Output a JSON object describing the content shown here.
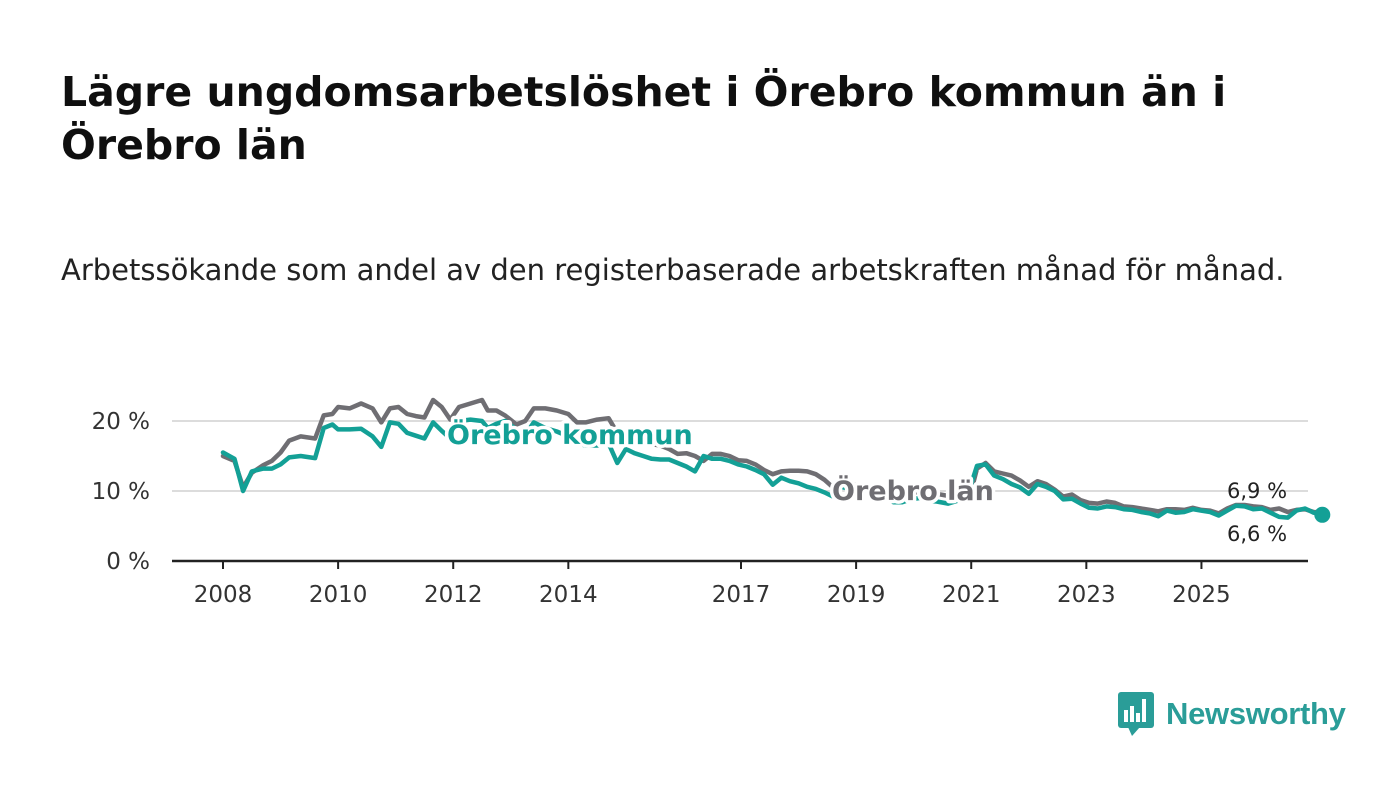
{
  "title": "Lägre ungdomsarbetslöshet i Örebro kommun än i Örebro län",
  "subtitle": "Arbetssökande som andel av den registerbaserade arbetskraften månad för månad.",
  "brand": {
    "name": "Newsworthy",
    "logo_icon": "bar-chart-speech-bubble-icon"
  },
  "colors": {
    "kommun": "#13a096",
    "lan": "#6f6e73",
    "grid": "#dcdcdc",
    "axis": "#222222",
    "brand": "#2a9d98"
  },
  "chart_data": {
    "type": "line",
    "title": "Lägre ungdomsarbetslöshet i Örebro kommun än i Örebro län",
    "xlabel": "",
    "ylabel": "",
    "xlim": [
      2008.0,
      2026.0
    ],
    "ylim": [
      0,
      20
    ],
    "y_ticks": [
      0,
      10,
      20
    ],
    "y_tick_labels": [
      "0 %",
      "10 %",
      "20 %"
    ],
    "x_ticks": [
      2008,
      2010,
      2012,
      2014,
      2017,
      2019,
      2021,
      2023,
      2025
    ],
    "x_tick_labels": [
      "2008",
      "2010",
      "2012",
      "2014",
      "2017",
      "2019",
      "2021",
      "2023",
      "2025"
    ],
    "grid": true,
    "series": [
      {
        "name": "Örebro län",
        "label": "Örebro län",
        "end_label": "6,9 %",
        "points": [
          [
            2008.0,
            15.0
          ],
          [
            2008.2,
            14.3
          ],
          [
            2008.35,
            10.5
          ],
          [
            2008.5,
            12.6
          ],
          [
            2008.7,
            13.7
          ],
          [
            2008.85,
            14.3
          ],
          [
            2009.0,
            15.5
          ],
          [
            2009.15,
            17.2
          ],
          [
            2009.35,
            17.8
          ],
          [
            2009.6,
            17.5
          ],
          [
            2009.75,
            20.8
          ],
          [
            2009.9,
            21.0
          ],
          [
            2010.0,
            22.0
          ],
          [
            2010.2,
            21.8
          ],
          [
            2010.4,
            22.5
          ],
          [
            2010.6,
            21.8
          ],
          [
            2010.75,
            19.8
          ],
          [
            2010.9,
            21.8
          ],
          [
            2011.05,
            22.0
          ],
          [
            2011.2,
            21.0
          ],
          [
            2011.35,
            20.7
          ],
          [
            2011.5,
            20.5
          ],
          [
            2011.65,
            23.0
          ],
          [
            2011.8,
            22.0
          ],
          [
            2011.95,
            20.2
          ],
          [
            2012.1,
            22.0
          ],
          [
            2012.3,
            22.5
          ],
          [
            2012.5,
            23.0
          ],
          [
            2012.6,
            21.5
          ],
          [
            2012.75,
            21.5
          ],
          [
            2012.9,
            20.8
          ],
          [
            2013.1,
            19.5
          ],
          [
            2013.25,
            20.0
          ],
          [
            2013.4,
            21.8
          ],
          [
            2013.6,
            21.8
          ],
          [
            2013.8,
            21.5
          ],
          [
            2014.0,
            21.0
          ],
          [
            2014.15,
            19.8
          ],
          [
            2014.3,
            19.8
          ],
          [
            2014.5,
            20.2
          ],
          [
            2014.7,
            20.4
          ],
          [
            2014.85,
            18.3
          ],
          [
            2015.0,
            17.4
          ],
          [
            2015.15,
            16.8
          ],
          [
            2015.3,
            16.8
          ],
          [
            2015.45,
            16.7
          ],
          [
            2015.6,
            16.5
          ],
          [
            2015.75,
            16.0
          ],
          [
            2015.9,
            15.3
          ],
          [
            2016.05,
            15.4
          ],
          [
            2016.2,
            15.0
          ],
          [
            2016.35,
            14.3
          ],
          [
            2016.5,
            15.3
          ],
          [
            2016.65,
            15.3
          ],
          [
            2016.8,
            15.0
          ],
          [
            2016.95,
            14.4
          ],
          [
            2017.1,
            14.3
          ],
          [
            2017.25,
            13.8
          ],
          [
            2017.4,
            13.0
          ],
          [
            2017.55,
            12.4
          ],
          [
            2017.7,
            12.8
          ],
          [
            2017.85,
            12.9
          ],
          [
            2018.0,
            12.9
          ],
          [
            2018.15,
            12.8
          ],
          [
            2018.3,
            12.4
          ],
          [
            2018.45,
            11.6
          ],
          [
            2018.6,
            10.5
          ],
          [
            2018.75,
            11.6
          ],
          [
            2018.9,
            11.0
          ],
          [
            2019.05,
            10.8
          ],
          [
            2019.2,
            10.5
          ],
          [
            2019.35,
            10.0
          ],
          [
            2019.5,
            9.9
          ],
          [
            2019.65,
            9.5
          ],
          [
            2019.8,
            9.0
          ],
          [
            2019.95,
            9.5
          ],
          [
            2020.1,
            10.0
          ],
          [
            2020.25,
            9.8
          ],
          [
            2020.4,
            9.6
          ],
          [
            2020.6,
            9.3
          ],
          [
            2020.8,
            9.0
          ],
          [
            2021.0,
            10.0
          ],
          [
            2021.1,
            13.2
          ],
          [
            2021.25,
            14.0
          ],
          [
            2021.4,
            12.8
          ],
          [
            2021.55,
            12.5
          ],
          [
            2021.7,
            12.2
          ],
          [
            2021.85,
            11.5
          ],
          [
            2022.0,
            10.6
          ],
          [
            2022.15,
            11.4
          ],
          [
            2022.3,
            11.0
          ],
          [
            2022.45,
            10.2
          ],
          [
            2022.6,
            9.2
          ],
          [
            2022.75,
            9.5
          ],
          [
            2022.9,
            8.7
          ],
          [
            2023.05,
            8.3
          ],
          [
            2023.2,
            8.2
          ],
          [
            2023.35,
            8.5
          ],
          [
            2023.5,
            8.3
          ],
          [
            2023.65,
            7.8
          ],
          [
            2023.8,
            7.7
          ],
          [
            2023.95,
            7.5
          ],
          [
            2024.1,
            7.3
          ],
          [
            2024.25,
            7.1
          ],
          [
            2024.4,
            7.4
          ],
          [
            2024.55,
            7.4
          ],
          [
            2024.7,
            7.3
          ],
          [
            2024.85,
            7.6
          ],
          [
            2025.0,
            7.3
          ],
          [
            2025.15,
            7.2
          ],
          [
            2025.3,
            6.8
          ],
          [
            2025.45,
            7.5
          ],
          [
            2025.6,
            8.0
          ],
          [
            2025.75,
            8.0
          ],
          [
            2025.9,
            7.8
          ],
          [
            2026.05,
            7.7
          ],
          [
            2026.2,
            7.3
          ],
          [
            2026.35,
            7.5
          ],
          [
            2026.5,
            7.0
          ],
          [
            2026.65,
            7.3
          ],
          [
            2026.8,
            7.4
          ],
          [
            2026.95,
            7.0
          ],
          [
            2027.1,
            6.9
          ]
        ]
      },
      {
        "name": "Örebro kommun",
        "label": "Örebro kommun",
        "end_label": "6,6 %",
        "points": [
          [
            2008.0,
            15.5
          ],
          [
            2008.2,
            14.6
          ],
          [
            2008.35,
            10.0
          ],
          [
            2008.5,
            12.8
          ],
          [
            2008.7,
            13.2
          ],
          [
            2008.85,
            13.2
          ],
          [
            2009.0,
            13.8
          ],
          [
            2009.15,
            14.8
          ],
          [
            2009.35,
            15.0
          ],
          [
            2009.6,
            14.7
          ],
          [
            2009.75,
            19.0
          ],
          [
            2009.9,
            19.5
          ],
          [
            2010.0,
            18.8
          ],
          [
            2010.2,
            18.8
          ],
          [
            2010.4,
            18.9
          ],
          [
            2010.6,
            17.8
          ],
          [
            2010.75,
            16.3
          ],
          [
            2010.9,
            19.8
          ],
          [
            2011.05,
            19.6
          ],
          [
            2011.2,
            18.3
          ],
          [
            2011.35,
            17.9
          ],
          [
            2011.5,
            17.5
          ],
          [
            2011.65,
            19.8
          ],
          [
            2011.8,
            18.6
          ],
          [
            2011.95,
            17.5
          ],
          [
            2012.1,
            20.0
          ],
          [
            2012.3,
            20.2
          ],
          [
            2012.5,
            20.0
          ],
          [
            2012.6,
            19.0
          ],
          [
            2012.75,
            19.6
          ],
          [
            2012.9,
            20.0
          ],
          [
            2013.1,
            18.8
          ],
          [
            2013.25,
            18.0
          ],
          [
            2013.4,
            19.8
          ],
          [
            2013.6,
            19.0
          ],
          [
            2013.8,
            18.5
          ],
          [
            2014.0,
            17.8
          ],
          [
            2014.15,
            16.8
          ],
          [
            2014.3,
            16.5
          ],
          [
            2014.5,
            16.5
          ],
          [
            2014.7,
            16.8
          ],
          [
            2014.85,
            14.0
          ],
          [
            2015.0,
            16.0
          ],
          [
            2015.15,
            15.4
          ],
          [
            2015.3,
            15.0
          ],
          [
            2015.45,
            14.6
          ],
          [
            2015.6,
            14.5
          ],
          [
            2015.75,
            14.5
          ],
          [
            2015.9,
            14.0
          ],
          [
            2016.05,
            13.5
          ],
          [
            2016.2,
            12.8
          ],
          [
            2016.35,
            15.0
          ],
          [
            2016.5,
            14.6
          ],
          [
            2016.65,
            14.6
          ],
          [
            2016.8,
            14.3
          ],
          [
            2016.95,
            13.8
          ],
          [
            2017.1,
            13.5
          ],
          [
            2017.25,
            13.0
          ],
          [
            2017.4,
            12.4
          ],
          [
            2017.55,
            10.9
          ],
          [
            2017.7,
            11.9
          ],
          [
            2017.85,
            11.4
          ],
          [
            2018.0,
            11.1
          ],
          [
            2018.15,
            10.6
          ],
          [
            2018.3,
            10.3
          ],
          [
            2018.45,
            9.8
          ],
          [
            2018.6,
            9.2
          ],
          [
            2018.75,
            10.6
          ],
          [
            2018.9,
            10.2
          ],
          [
            2019.05,
            10.2
          ],
          [
            2019.2,
            10.1
          ],
          [
            2019.35,
            9.2
          ],
          [
            2019.5,
            9.4
          ],
          [
            2019.65,
            8.4
          ],
          [
            2019.8,
            8.4
          ],
          [
            2019.95,
            8.8
          ],
          [
            2020.1,
            9.0
          ],
          [
            2020.25,
            8.6
          ],
          [
            2020.4,
            8.5
          ],
          [
            2020.6,
            8.2
          ],
          [
            2020.8,
            8.7
          ],
          [
            2021.0,
            11.0
          ],
          [
            2021.1,
            13.6
          ],
          [
            2021.25,
            13.8
          ],
          [
            2021.4,
            12.2
          ],
          [
            2021.55,
            11.7
          ],
          [
            2021.7,
            11.0
          ],
          [
            2021.85,
            10.5
          ],
          [
            2022.0,
            9.6
          ],
          [
            2022.15,
            11.0
          ],
          [
            2022.3,
            10.6
          ],
          [
            2022.45,
            10.0
          ],
          [
            2022.6,
            8.8
          ],
          [
            2022.75,
            8.9
          ],
          [
            2022.9,
            8.2
          ],
          [
            2023.05,
            7.6
          ],
          [
            2023.2,
            7.5
          ],
          [
            2023.35,
            7.8
          ],
          [
            2023.5,
            7.7
          ],
          [
            2023.65,
            7.4
          ],
          [
            2023.8,
            7.3
          ],
          [
            2023.95,
            7.0
          ],
          [
            2024.1,
            6.8
          ],
          [
            2024.25,
            6.4
          ],
          [
            2024.4,
            7.2
          ],
          [
            2024.55,
            6.9
          ],
          [
            2024.7,
            7.0
          ],
          [
            2024.85,
            7.4
          ],
          [
            2025.0,
            7.2
          ],
          [
            2025.15,
            7.0
          ],
          [
            2025.3,
            6.5
          ],
          [
            2025.45,
            7.2
          ],
          [
            2025.6,
            7.9
          ],
          [
            2025.75,
            7.8
          ],
          [
            2025.9,
            7.4
          ],
          [
            2026.05,
            7.5
          ],
          [
            2026.2,
            6.9
          ],
          [
            2026.35,
            6.3
          ],
          [
            2026.5,
            6.2
          ],
          [
            2026.65,
            7.2
          ],
          [
            2026.8,
            7.5
          ],
          [
            2026.95,
            6.9
          ],
          [
            2027.1,
            6.6
          ]
        ]
      }
    ]
  }
}
